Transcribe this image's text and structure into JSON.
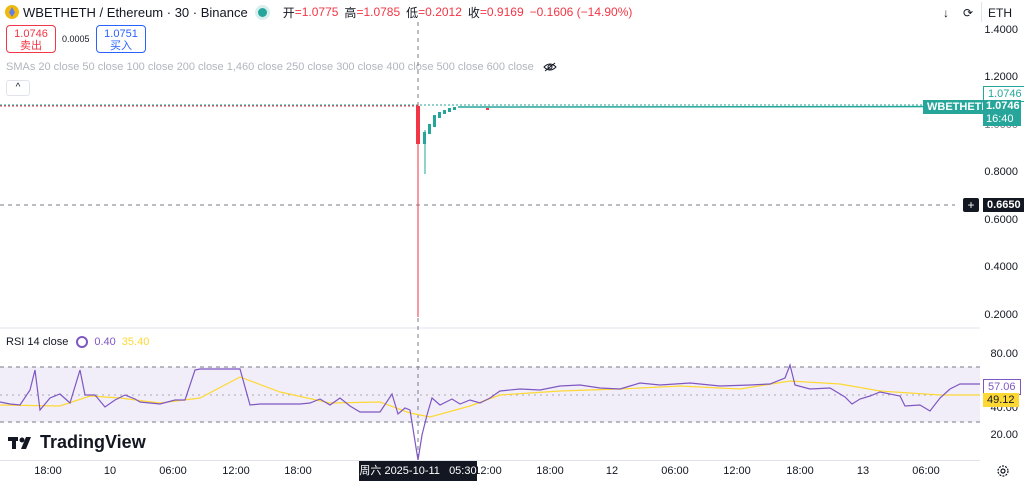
{
  "header": {
    "symbol_title": "WBETHETH / Ethereum · 30 · Binance",
    "open_label": "开",
    "open_value": "=1.0775",
    "high_label": "高",
    "high_value": "=1.0785",
    "low_label": "低",
    "low_value": "=0.2012",
    "close_label": "收",
    "close_value": "=0.9169",
    "change_value": "−0.1606 (−14.90%)",
    "currency_label": "ETH"
  },
  "trade": {
    "sell_price": "1.0746",
    "sell_label": "卖出",
    "spread": "0.0005",
    "buy_price": "1.0751",
    "buy_label": "买入"
  },
  "indicators": {
    "sma_legend": "SMAs 20 close 50 close 100 close 200 close 1,460 close 250 close 300 close 400 close 500 close 600 close",
    "rsi_label": "RSI 14 close",
    "rsi_value": "0.40",
    "rsi_ma_value": "35.40"
  },
  "price_axis": {
    "ticks": [
      "1.4000",
      "1.2000",
      "1.0000",
      "0.8000",
      "0.6000",
      "0.4000",
      "0.2000"
    ]
  },
  "rsi_axis": {
    "ticks": [
      "80.00",
      "60.00",
      "40.00",
      "20.00"
    ]
  },
  "badges": {
    "symbol": "WBETHETH",
    "last_price": "1.0746",
    "countdown": "16:40",
    "prev_line": "1.0746",
    "cursor_price": "0.6650",
    "rsi_now": "57.06",
    "rsi_ma_now": "49.12"
  },
  "time_axis": {
    "ticks": [
      "18:00",
      "10",
      "06:00",
      "12:00",
      "18:00",
      "12:00",
      "18:00",
      "12",
      "06:00",
      "12:00",
      "18:00",
      "13",
      "06:00"
    ],
    "cursor_label": "周六 2025-10-11   05:30"
  },
  "logo": "TradingView",
  "colors": {
    "up": "#26a69a",
    "down": "#f23645",
    "rsi": "#7e57c2",
    "rsi_ma": "#fdd835",
    "accent": "#2962ff"
  }
}
